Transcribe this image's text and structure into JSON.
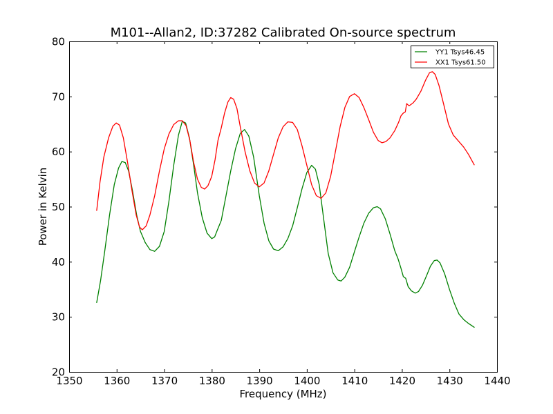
{
  "chart_data": {
    "type": "line",
    "title": "M101--Allan2, ID:37282 Calibrated On-source spectrum",
    "xlabel": "Frequency (MHz)",
    "ylabel": "Power in Kelvin",
    "xlim": [
      1350,
      1440
    ],
    "ylim": [
      20,
      80
    ],
    "xticks": [
      1350,
      1360,
      1370,
      1380,
      1390,
      1400,
      1410,
      1420,
      1430,
      1440
    ],
    "yticks": [
      20,
      30,
      40,
      50,
      60,
      70,
      80
    ],
    "grid": false,
    "legend_position": "top-right",
    "series": [
      {
        "name": "YY1 Tsys46.45",
        "color": "#008000",
        "points": [
          [
            1355.8,
            32.6
          ],
          [
            1356.6,
            36.5
          ],
          [
            1357.5,
            42.0
          ],
          [
            1358.5,
            48.5
          ],
          [
            1359.5,
            54.0
          ],
          [
            1360.4,
            57.0
          ],
          [
            1361.1,
            58.2
          ],
          [
            1361.8,
            58.0
          ],
          [
            1362.5,
            56.5
          ],
          [
            1363.3,
            53.0
          ],
          [
            1364.2,
            48.5
          ],
          [
            1365.0,
            45.5
          ],
          [
            1366.0,
            43.5
          ],
          [
            1367.0,
            42.2
          ],
          [
            1368.0,
            41.9
          ],
          [
            1369.0,
            42.8
          ],
          [
            1370.0,
            45.5
          ],
          [
            1371.0,
            51.0
          ],
          [
            1372.0,
            57.5
          ],
          [
            1373.0,
            63.0
          ],
          [
            1373.8,
            65.5
          ],
          [
            1374.5,
            65.2
          ],
          [
            1375.3,
            62.5
          ],
          [
            1376.2,
            57.5
          ],
          [
            1377.0,
            52.5
          ],
          [
            1378.0,
            48.0
          ],
          [
            1379.0,
            45.2
          ],
          [
            1380.0,
            44.2
          ],
          [
            1380.6,
            44.5
          ],
          [
            1381.2,
            45.8
          ],
          [
            1382.0,
            47.5
          ],
          [
            1383.0,
            52.0
          ],
          [
            1384.0,
            56.5
          ],
          [
            1385.0,
            60.5
          ],
          [
            1386.0,
            63.3
          ],
          [
            1386.9,
            64.0
          ],
          [
            1387.8,
            62.8
          ],
          [
            1388.8,
            59.0
          ],
          [
            1390.0,
            52.0
          ],
          [
            1391.0,
            47.0
          ],
          [
            1392.0,
            43.8
          ],
          [
            1393.0,
            42.3
          ],
          [
            1394.0,
            42.0
          ],
          [
            1395.0,
            42.7
          ],
          [
            1396.0,
            44.2
          ],
          [
            1397.0,
            46.5
          ],
          [
            1398.0,
            49.8
          ],
          [
            1399.0,
            53.3
          ],
          [
            1400.0,
            56.2
          ],
          [
            1401.0,
            57.5
          ],
          [
            1401.8,
            56.8
          ],
          [
            1402.6,
            54.0
          ],
          [
            1403.5,
            48.0
          ],
          [
            1404.5,
            41.5
          ],
          [
            1405.5,
            38.0
          ],
          [
            1406.5,
            36.7
          ],
          [
            1407.2,
            36.5
          ],
          [
            1408.0,
            37.2
          ],
          [
            1409.0,
            39.0
          ],
          [
            1410.0,
            41.8
          ],
          [
            1411.0,
            44.5
          ],
          [
            1412.0,
            47.0
          ],
          [
            1413.0,
            48.8
          ],
          [
            1414.0,
            49.8
          ],
          [
            1414.8,
            50.0
          ],
          [
            1415.5,
            49.6
          ],
          [
            1416.5,
            47.8
          ],
          [
            1417.5,
            45.0
          ],
          [
            1418.5,
            42.0
          ],
          [
            1419.2,
            40.5
          ],
          [
            1419.8,
            38.8
          ],
          [
            1420.3,
            37.3
          ],
          [
            1420.8,
            37.0
          ],
          [
            1421.3,
            35.5
          ],
          [
            1422.0,
            34.7
          ],
          [
            1422.8,
            34.3
          ],
          [
            1423.5,
            34.6
          ],
          [
            1424.3,
            35.7
          ],
          [
            1425.2,
            37.5
          ],
          [
            1426.0,
            39.2
          ],
          [
            1426.8,
            40.2
          ],
          [
            1427.4,
            40.3
          ],
          [
            1428.0,
            39.8
          ],
          [
            1429.0,
            37.8
          ],
          [
            1430.0,
            35.0
          ],
          [
            1431.0,
            32.5
          ],
          [
            1432.0,
            30.5
          ],
          [
            1433.0,
            29.5
          ],
          [
            1434.0,
            28.8
          ],
          [
            1435.2,
            28.1
          ]
        ]
      },
      {
        "name": "XX1 Tsys61.50",
        "color": "#ff0000",
        "points": [
          [
            1355.8,
            49.3
          ],
          [
            1356.5,
            54.5
          ],
          [
            1357.3,
            59.0
          ],
          [
            1358.3,
            62.5
          ],
          [
            1359.2,
            64.6
          ],
          [
            1359.9,
            65.2
          ],
          [
            1360.6,
            64.8
          ],
          [
            1361.4,
            62.5
          ],
          [
            1362.3,
            58.0
          ],
          [
            1363.2,
            53.0
          ],
          [
            1364.1,
            48.5
          ],
          [
            1364.8,
            46.3
          ],
          [
            1365.4,
            45.8
          ],
          [
            1366.2,
            46.5
          ],
          [
            1367.0,
            48.5
          ],
          [
            1368.0,
            52.0
          ],
          [
            1369.0,
            56.5
          ],
          [
            1370.0,
            60.5
          ],
          [
            1371.0,
            63.2
          ],
          [
            1372.0,
            64.9
          ],
          [
            1373.0,
            65.6
          ],
          [
            1373.8,
            65.6
          ],
          [
            1374.6,
            64.7
          ],
          [
            1375.4,
            62.0
          ],
          [
            1376.2,
            58.0
          ],
          [
            1377.0,
            55.0
          ],
          [
            1377.8,
            53.5
          ],
          [
            1378.5,
            53.2
          ],
          [
            1379.2,
            53.8
          ],
          [
            1380.0,
            55.5
          ],
          [
            1380.7,
            58.5
          ],
          [
            1381.3,
            62.0
          ],
          [
            1382.0,
            64.3
          ],
          [
            1382.7,
            67.0
          ],
          [
            1383.4,
            69.0
          ],
          [
            1384.0,
            69.8
          ],
          [
            1384.6,
            69.5
          ],
          [
            1385.3,
            67.8
          ],
          [
            1386.0,
            64.5
          ],
          [
            1387.0,
            60.0
          ],
          [
            1388.0,
            56.5
          ],
          [
            1389.0,
            54.3
          ],
          [
            1390.0,
            53.6
          ],
          [
            1391.0,
            54.3
          ],
          [
            1392.0,
            56.5
          ],
          [
            1393.0,
            59.5
          ],
          [
            1394.0,
            62.5
          ],
          [
            1395.0,
            64.5
          ],
          [
            1396.0,
            65.4
          ],
          [
            1397.0,
            65.3
          ],
          [
            1398.0,
            64.0
          ],
          [
            1399.0,
            61.0
          ],
          [
            1400.0,
            57.5
          ],
          [
            1401.0,
            54.0
          ],
          [
            1402.0,
            52.0
          ],
          [
            1403.0,
            51.5
          ],
          [
            1404.0,
            52.5
          ],
          [
            1405.0,
            55.5
          ],
          [
            1406.0,
            60.0
          ],
          [
            1407.0,
            64.5
          ],
          [
            1408.0,
            68.0
          ],
          [
            1409.0,
            70.0
          ],
          [
            1410.0,
            70.5
          ],
          [
            1411.0,
            69.8
          ],
          [
            1412.0,
            68.0
          ],
          [
            1413.0,
            65.8
          ],
          [
            1414.0,
            63.5
          ],
          [
            1415.0,
            62.0
          ],
          [
            1415.8,
            61.6
          ],
          [
            1416.6,
            61.8
          ],
          [
            1417.5,
            62.5
          ],
          [
            1418.5,
            63.8
          ],
          [
            1419.3,
            65.3
          ],
          [
            1419.8,
            66.5
          ],
          [
            1420.3,
            67.0
          ],
          [
            1420.7,
            67.2
          ],
          [
            1421.0,
            68.7
          ],
          [
            1421.5,
            68.3
          ],
          [
            1422.3,
            68.8
          ],
          [
            1423.0,
            69.5
          ],
          [
            1424.0,
            71.0
          ],
          [
            1425.0,
            73.0
          ],
          [
            1425.8,
            74.3
          ],
          [
            1426.4,
            74.5
          ],
          [
            1427.0,
            74.0
          ],
          [
            1427.8,
            72.0
          ],
          [
            1428.8,
            68.5
          ],
          [
            1429.8,
            65.0
          ],
          [
            1430.8,
            63.0
          ],
          [
            1432.0,
            61.8
          ],
          [
            1433.0,
            60.8
          ],
          [
            1434.0,
            59.5
          ],
          [
            1435.2,
            57.6
          ]
        ]
      }
    ]
  }
}
